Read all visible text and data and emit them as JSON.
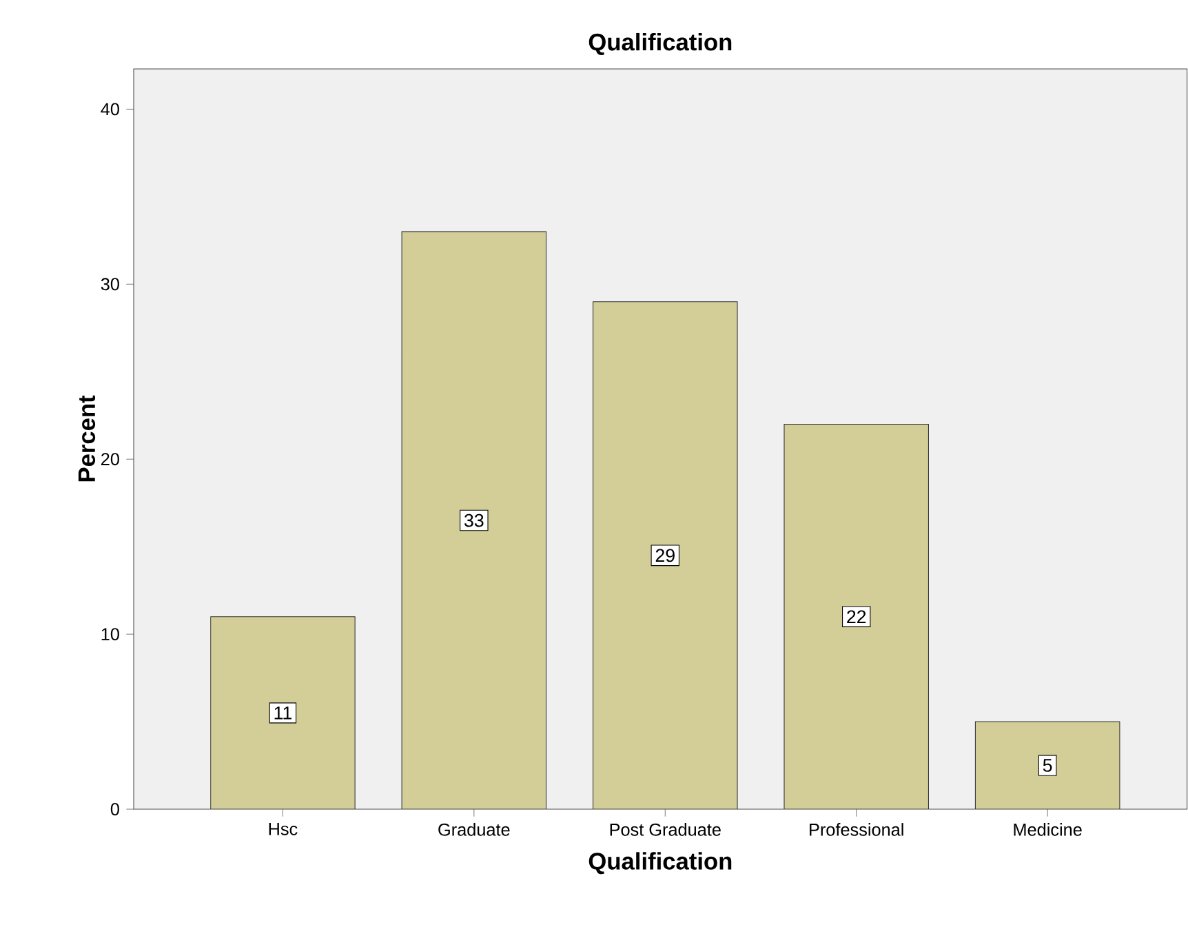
{
  "chart_data": {
    "type": "bar",
    "title": "Qualification",
    "xlabel": "Qualification",
    "ylabel": "Percent",
    "categories": [
      "Hsc",
      "Graduate",
      "Post Graduate",
      "Professional",
      "Medicine"
    ],
    "values": [
      11,
      33,
      29,
      22,
      5
    ],
    "color": "#d3ce97",
    "ylim": [
      0,
      42.3
    ],
    "yticks": [
      0,
      10,
      20,
      30,
      40
    ],
    "data_labels": true
  }
}
